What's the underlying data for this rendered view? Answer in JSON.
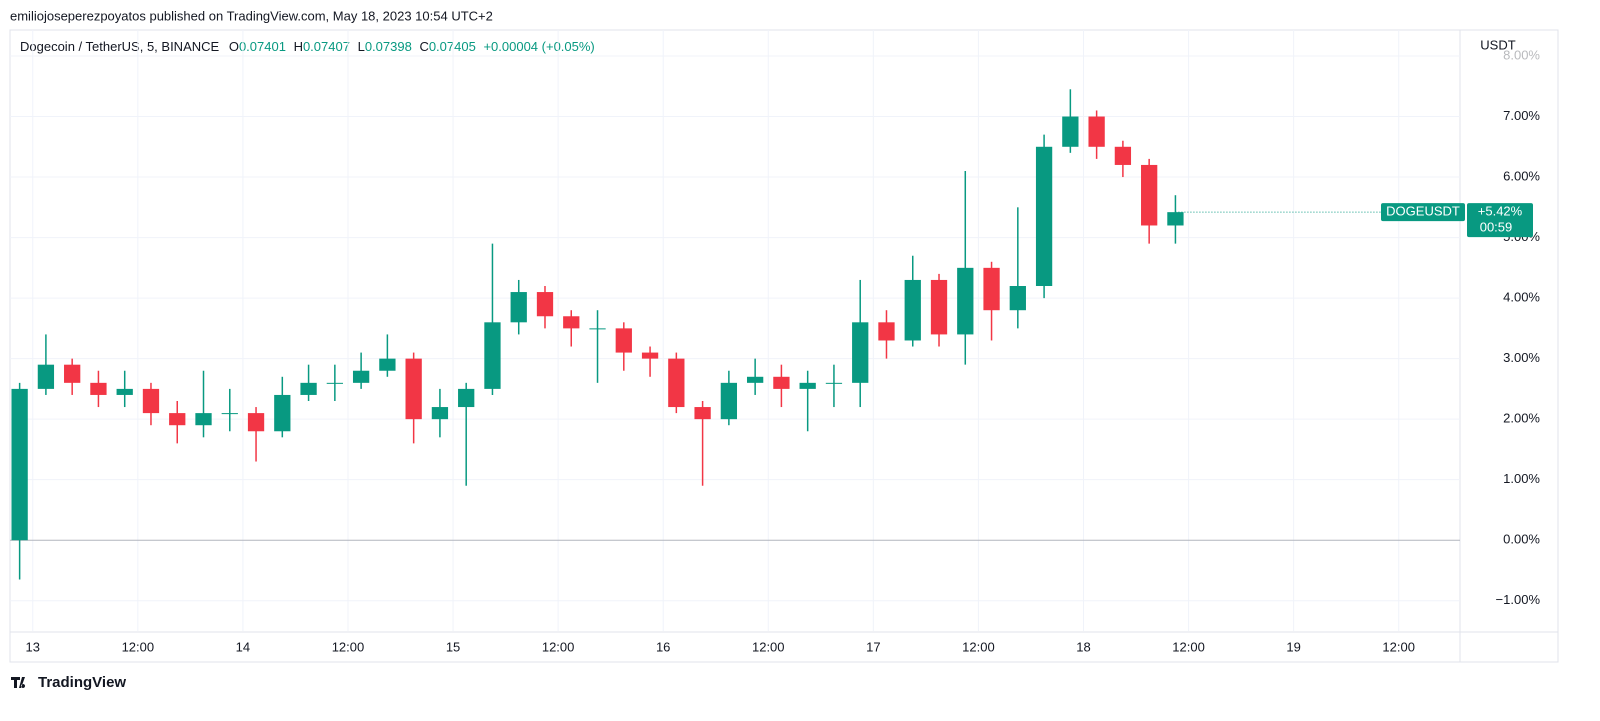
{
  "header": {
    "text": "emiliojoseperezpoyatos published on TradingView.com, May 18, 2023 10:54 UTC+2"
  },
  "footer": {
    "brand": "TradingView"
  },
  "chart_data": {
    "type": "candlestick",
    "symbol": "Dogecoin / TetherUS, 5, BINANCE",
    "ohlc_legend": {
      "o_label": "O",
      "o": 0.07401,
      "h_label": "H",
      "h": 0.07407,
      "l_label": "L",
      "l": 0.07398,
      "c_label": "C",
      "c": 0.07405,
      "change": "+0.00004 (+0.05%)"
    },
    "y_unit": "USDT",
    "price_tag": {
      "name": "DOGEUSDT",
      "value_label": "+5.42%",
      "countdown": "00:59"
    },
    "up_color": "#089981",
    "down_color": "#f23645",
    "x": [
      -1.5,
      1.5,
      4.5,
      7.5,
      10.5,
      13.5,
      16.5,
      19.5,
      22.5,
      25.5,
      28.5,
      31.5,
      34.5,
      37.5,
      40.5,
      43.5,
      46.5,
      49.5,
      52.5,
      55.5,
      58.5,
      61.5,
      64.5,
      67.5,
      70.5,
      73.5,
      76.5,
      79.5,
      82.5,
      85.5,
      88.5,
      91.5,
      94.5,
      97.5,
      100.5,
      103.5,
      106.5,
      109.5,
      112.5,
      115.5,
      118.5,
      121.5,
      124.5,
      127.5,
      130.5
    ],
    "open": [
      0,
      2.5,
      2.9,
      2.6,
      2.4,
      2.5,
      2.1,
      1.9,
      2.1,
      2.1,
      1.8,
      2.4,
      2.6,
      2.6,
      2.8,
      3.0,
      2.0,
      2.2,
      2.5,
      3.6,
      4.1,
      3.7,
      3.5,
      3.5,
      3.1,
      3.0,
      2.2,
      2.0,
      2.6,
      2.7,
      2.5,
      2.6,
      2.6,
      3.6,
      3.3,
      4.3,
      3.4,
      4.5,
      3.8,
      4.2,
      6.5,
      7.0,
      6.5,
      6.2,
      5.2
    ],
    "high": [
      2.6,
      3.4,
      3.0,
      2.8,
      2.8,
      2.6,
      2.3,
      2.8,
      2.5,
      2.2,
      2.7,
      2.9,
      2.9,
      3.1,
      3.4,
      3.1,
      2.5,
      2.6,
      4.9,
      4.3,
      4.2,
      3.8,
      3.8,
      3.6,
      3.2,
      3.1,
      2.3,
      2.8,
      3.0,
      2.9,
      2.8,
      2.9,
      4.3,
      3.8,
      4.7,
      4.4,
      6.1,
      4.6,
      5.5,
      6.7,
      7.45,
      7.1,
      6.6,
      6.3,
      5.7
    ],
    "low": [
      -0.65,
      2.4,
      2.4,
      2.2,
      2.2,
      1.9,
      1.6,
      1.7,
      1.8,
      1.3,
      1.7,
      2.3,
      2.3,
      2.5,
      2.7,
      1.6,
      1.7,
      0.9,
      2.4,
      3.4,
      3.5,
      3.2,
      2.6,
      2.8,
      2.7,
      2.1,
      0.9,
      1.9,
      2.4,
      2.2,
      1.8,
      2.2,
      2.2,
      3.0,
      3.2,
      3.2,
      2.9,
      3.3,
      3.5,
      4.0,
      6.4,
      6.3,
      6.0,
      4.9,
      4.9
    ],
    "close": [
      2.5,
      2.9,
      2.6,
      2.4,
      2.5,
      2.1,
      1.9,
      2.1,
      2.1,
      1.8,
      2.4,
      2.6,
      2.6,
      2.8,
      3.0,
      2.0,
      2.2,
      2.5,
      3.6,
      4.1,
      3.7,
      3.5,
      3.5,
      3.1,
      3.0,
      2.2,
      2.0,
      2.6,
      2.7,
      2.5,
      2.6,
      2.6,
      3.6,
      3.3,
      4.3,
      3.4,
      4.5,
      3.8,
      4.2,
      6.5,
      7.0,
      6.5,
      6.2,
      5.2,
      5.42
    ],
    "xlim": [
      -2.6,
      163
    ],
    "xticks": [
      {
        "value": 0,
        "label": "13"
      },
      {
        "value": 12,
        "label": "12:00"
      },
      {
        "value": 24,
        "label": "14"
      },
      {
        "value": 36,
        "label": "12:00"
      },
      {
        "value": 48,
        "label": "15"
      },
      {
        "value": 60,
        "label": "12:00"
      },
      {
        "value": 72,
        "label": "16"
      },
      {
        "value": 84,
        "label": "12:00"
      },
      {
        "value": 96,
        "label": "17"
      },
      {
        "value": 108,
        "label": "12:00"
      },
      {
        "value": 120,
        "label": "18"
      },
      {
        "value": 132,
        "label": "12:00"
      },
      {
        "value": 144,
        "label": "19"
      },
      {
        "value": 156,
        "label": "12:00"
      }
    ],
    "ylim": [
      -1.5,
      8
    ],
    "yticks": [
      {
        "value": -1,
        "label": "−1.00%"
      },
      {
        "value": 0,
        "label": "0.00%"
      },
      {
        "value": 1,
        "label": "1.00%"
      },
      {
        "value": 2,
        "label": "2.00%"
      },
      {
        "value": 3,
        "label": "3.00%"
      },
      {
        "value": 4,
        "label": "4.00%"
      },
      {
        "value": 5,
        "label": "5.00%"
      },
      {
        "value": 6,
        "label": "6.00%"
      },
      {
        "value": 7,
        "label": "7.00%"
      },
      {
        "value": 8,
        "label": "8.00%"
      }
    ],
    "grid": true
  }
}
